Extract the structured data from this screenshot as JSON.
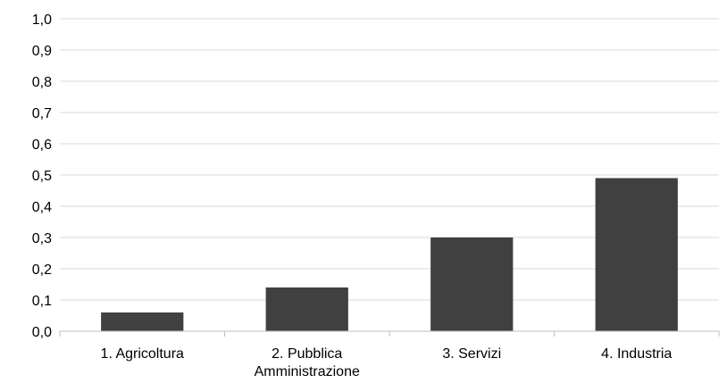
{
  "chart_data": {
    "type": "bar",
    "categories": [
      [
        "1. Agricoltura"
      ],
      [
        "2. Pubblica",
        "Amministrazione"
      ],
      [
        "3. Servizi"
      ],
      [
        "4. Industria"
      ]
    ],
    "values": [
      0.06,
      0.14,
      0.3,
      0.49
    ],
    "ylim": [
      0,
      1.0
    ],
    "yticks": [
      "0,0",
      "0,1",
      "0,2",
      "0,3",
      "0,4",
      "0,5",
      "0,6",
      "0,7",
      "0,8",
      "0,9",
      "1,0"
    ],
    "grid": true,
    "legend": "none"
  },
  "colors": {
    "bar": "#404040",
    "grid": "#d9d9d9",
    "axis": "#bfbfbf"
  }
}
